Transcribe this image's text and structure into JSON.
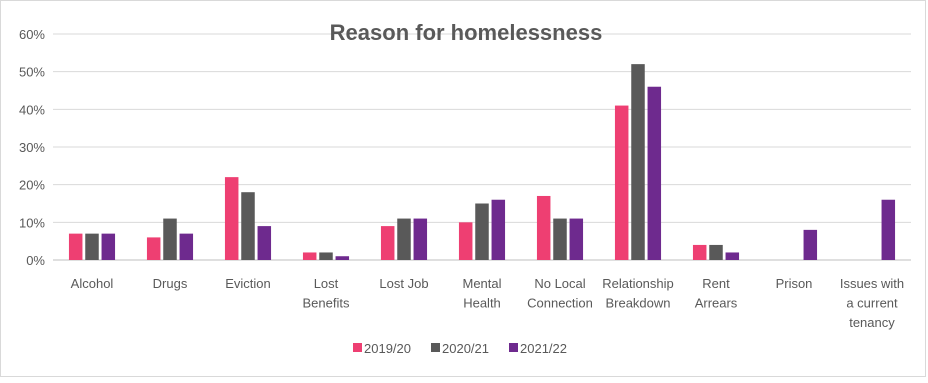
{
  "chart_data": {
    "type": "bar",
    "title": "Reason for homelessness",
    "xlabel": "",
    "ylabel": "",
    "ylim": [
      0,
      60
    ],
    "yticks": [
      "0%",
      "10%",
      "20%",
      "30%",
      "40%",
      "50%",
      "60%"
    ],
    "grid": true,
    "legend_position": "bottom",
    "categories": [
      [
        "Alcohol"
      ],
      [
        "Drugs"
      ],
      [
        "Eviction"
      ],
      [
        "Lost",
        "Benefits"
      ],
      [
        "Lost Job"
      ],
      [
        "Mental",
        "Health"
      ],
      [
        "No Local",
        "Connection"
      ],
      [
        "Relationship",
        "Breakdown"
      ],
      [
        "Rent",
        "Arrears"
      ],
      [
        "Prison"
      ],
      [
        "Issues with",
        "a current",
        "tenancy"
      ]
    ],
    "series": [
      {
        "name": "2019/20",
        "color": "#ee3f72",
        "values": [
          7,
          6,
          22,
          2,
          9,
          10,
          17,
          41,
          4,
          0,
          0
        ]
      },
      {
        "name": "2020/21",
        "color": "#595959",
        "values": [
          7,
          11,
          18,
          2,
          11,
          15,
          11,
          52,
          4,
          0,
          0
        ]
      },
      {
        "name": "2021/22",
        "color": "#6e2a8e",
        "values": [
          7,
          7,
          9,
          1,
          11,
          16,
          11,
          46,
          2,
          8,
          16
        ]
      }
    ]
  }
}
